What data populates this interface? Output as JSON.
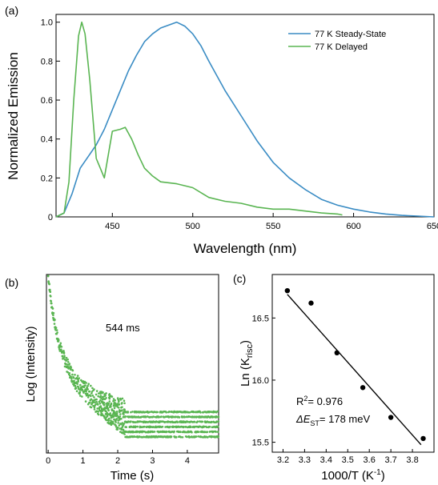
{
  "chart_data": [
    {
      "panel": "(a)",
      "type": "line",
      "xlabel": "Wavelength (nm)",
      "ylabel": "Normalized Emission",
      "xlim": [
        415,
        650
      ],
      "ylim": [
        0,
        1.04
      ],
      "xticks": [
        450,
        500,
        550,
        600,
        650
      ],
      "yticks": [
        0,
        0.2,
        0.4,
        0.6,
        0.8,
        1.0
      ],
      "ytick_labels": [
        "0",
        "0.2",
        "0.4",
        "0.6",
        "0.8",
        "1.0"
      ],
      "legend_position": "top-right",
      "series": [
        {
          "name": "77 K Steady-State",
          "color": "#3a8cc4",
          "x": [
            415,
            420,
            425,
            430,
            435,
            440,
            445,
            450,
            455,
            460,
            465,
            470,
            475,
            480,
            485,
            490,
            495,
            500,
            505,
            510,
            520,
            530,
            540,
            550,
            560,
            570,
            580,
            590,
            600,
            610,
            620,
            630,
            640,
            650
          ],
          "y": [
            0.0,
            0.02,
            0.12,
            0.25,
            0.31,
            0.37,
            0.45,
            0.55,
            0.65,
            0.75,
            0.83,
            0.9,
            0.94,
            0.97,
            0.985,
            1.0,
            0.98,
            0.94,
            0.88,
            0.8,
            0.65,
            0.52,
            0.39,
            0.28,
            0.2,
            0.14,
            0.09,
            0.06,
            0.04,
            0.025,
            0.015,
            0.008,
            0.004,
            0.0
          ]
        },
        {
          "name": "77 K Delayed",
          "color": "#5ab552",
          "x": [
            415,
            420,
            423,
            426,
            429,
            431,
            433,
            436,
            440,
            445,
            450,
            455,
            458,
            462,
            466,
            470,
            475,
            480,
            490,
            500,
            510,
            520,
            530,
            540,
            550,
            560,
            570,
            580,
            590,
            593
          ],
          "y": [
            0.0,
            0.02,
            0.18,
            0.6,
            0.93,
            1.0,
            0.94,
            0.7,
            0.3,
            0.2,
            0.44,
            0.45,
            0.46,
            0.4,
            0.32,
            0.25,
            0.21,
            0.18,
            0.17,
            0.15,
            0.1,
            0.08,
            0.07,
            0.05,
            0.04,
            0.04,
            0.03,
            0.02,
            0.015,
            0.01
          ]
        }
      ]
    },
    {
      "panel": "(b)",
      "type": "scatter",
      "xlabel": "Time (s)",
      "ylabel": "Log (Intensity)",
      "xlim": [
        -0.05,
        4.9
      ],
      "xticks": [
        0,
        1,
        2,
        3,
        4
      ],
      "annotation": "544 ms",
      "series": [
        {
          "name": "",
          "color": "#5ab552",
          "decay_tau_s": 0.544,
          "x": [
            0.0,
            0.1,
            0.2,
            0.3,
            0.5,
            0.75,
            1.0,
            1.5,
            2.0,
            2.5,
            3.0,
            3.5,
            4.0,
            4.5,
            4.9
          ],
          "y": [
            1.0,
            0.82,
            0.7,
            0.6,
            0.48,
            0.38,
            0.31,
            0.23,
            0.17,
            0.12,
            0.1,
            0.09,
            0.08,
            0.08,
            0.08
          ]
        }
      ]
    },
    {
      "panel": "(c)",
      "type": "scatter",
      "xlabel_text": "1000/T (K",
      "xlabel_sup": "-1",
      "xlabel_end": ")",
      "ylabel_text": "Ln (K",
      "ylabel_sub": "risc",
      "ylabel_end": ")",
      "xlim": [
        3.15,
        3.9
      ],
      "ylim": [
        15.42,
        16.85
      ],
      "xticks": [
        3.2,
        3.3,
        3.4,
        3.5,
        3.6,
        3.7,
        3.8
      ],
      "yticks": [
        15.5,
        16.0,
        16.5
      ],
      "ytick_labels": [
        "15.5",
        "16.0",
        "16.5"
      ],
      "annotation_r2_label": "R",
      "annotation_r2_sup": "2",
      "annotation_r2_value": "= 0.976",
      "annotation_est_prefix": "ΔE",
      "annotation_est_sub": "ST",
      "annotation_est_value": "= 178 meV",
      "fit": {
        "x": [
          3.22,
          3.84
        ],
        "y": [
          16.69,
          15.48
        ]
      },
      "series": [
        {
          "name": "",
          "color": "#000000",
          "x": [
            3.22,
            3.33,
            3.45,
            3.57,
            3.7,
            3.85
          ],
          "y": [
            16.72,
            16.62,
            16.22,
            15.94,
            15.7,
            15.53
          ]
        }
      ]
    }
  ]
}
